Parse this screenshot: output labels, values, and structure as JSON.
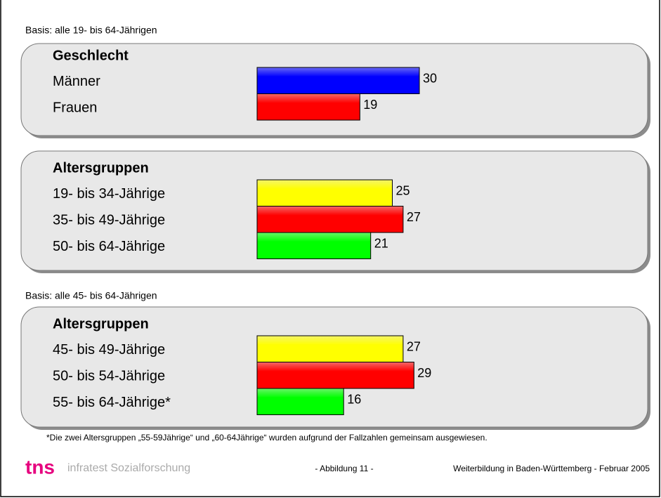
{
  "chart_data": [
    {
      "type": "bar",
      "orientation": "horizontal",
      "title": "Geschlecht",
      "categories": [
        "Männer",
        "Frauen"
      ],
      "values": [
        30,
        19
      ],
      "colors": [
        "#0000ff",
        "#ff0000"
      ]
    },
    {
      "type": "bar",
      "orientation": "horizontal",
      "title": "Altersgruppen",
      "categories": [
        "19- bis 34-Jährige",
        "35- bis 49-Jährige",
        "50- bis 64-Jährige"
      ],
      "values": [
        25,
        27,
        21
      ],
      "colors": [
        "#ffff00",
        "#ff0000",
        "#00ff00"
      ]
    },
    {
      "type": "bar",
      "orientation": "horizontal",
      "title": "Altersgruppen",
      "categories": [
        "45- bis 49-Jährige",
        "50- bis 54-Jährige",
        "55- bis 64-Jährige*"
      ],
      "values": [
        27,
        29,
        16
      ],
      "colors": [
        "#ffff00",
        "#ff0000",
        "#00ff00"
      ]
    }
  ],
  "basis": [
    "Basis: alle 19- bis 64-Jährigen",
    "Basis: alle 45- bis 64-Jährigen"
  ],
  "footnote": "*Die zwei Altersgruppen „55-59Jährige“ und „60-64Jährige“ wurden aufgrund der Fallzahlen gemeinsam ausgewiesen.",
  "logo": {
    "brand": "tns",
    "name": "infratest Sozialforschung"
  },
  "footer": {
    "figure": "- Abbildung 11 -",
    "source": "Weiterbildung in Baden-Württemberg - Februar 2005"
  }
}
